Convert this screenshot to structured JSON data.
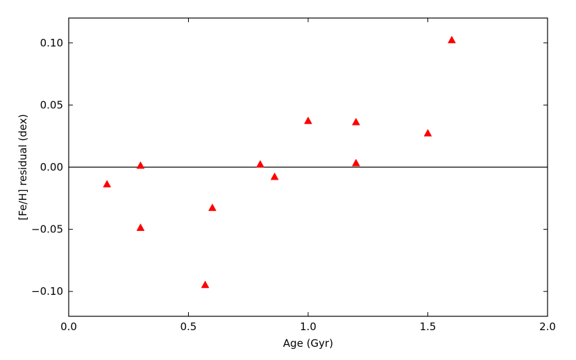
{
  "chart_data": {
    "type": "scatter",
    "title": "",
    "xlabel": "Age (Gyr)",
    "ylabel": "[Fe/H] residual (dex)",
    "xlim": [
      0.0,
      2.0
    ],
    "ylim": [
      -0.12,
      0.12
    ],
    "x_ticks": [
      0.0,
      0.5,
      1.0,
      1.5,
      2.0
    ],
    "x_tick_labels": [
      "0.0",
      "0.5",
      "1.0",
      "1.5",
      "2.0"
    ],
    "y_ticks": [
      -0.1,
      -0.05,
      0.0,
      0.05,
      0.1
    ],
    "y_tick_labels": [
      "−0.10",
      "−0.05",
      "0.00",
      "0.05",
      "0.10"
    ],
    "grid": false,
    "reference_line_y": 0.0,
    "marker": "triangle-up",
    "marker_color": "#ff0000",
    "points": [
      {
        "x": 0.16,
        "y": -0.014
      },
      {
        "x": 0.3,
        "y": 0.001
      },
      {
        "x": 0.3,
        "y": -0.049
      },
      {
        "x": 0.57,
        "y": -0.095
      },
      {
        "x": 0.6,
        "y": -0.033
      },
      {
        "x": 0.8,
        "y": 0.002
      },
      {
        "x": 0.86,
        "y": -0.008
      },
      {
        "x": 1.0,
        "y": 0.037
      },
      {
        "x": 1.2,
        "y": 0.036
      },
      {
        "x": 1.2,
        "y": 0.003
      },
      {
        "x": 1.5,
        "y": 0.027
      },
      {
        "x": 1.6,
        "y": 0.102
      }
    ]
  }
}
